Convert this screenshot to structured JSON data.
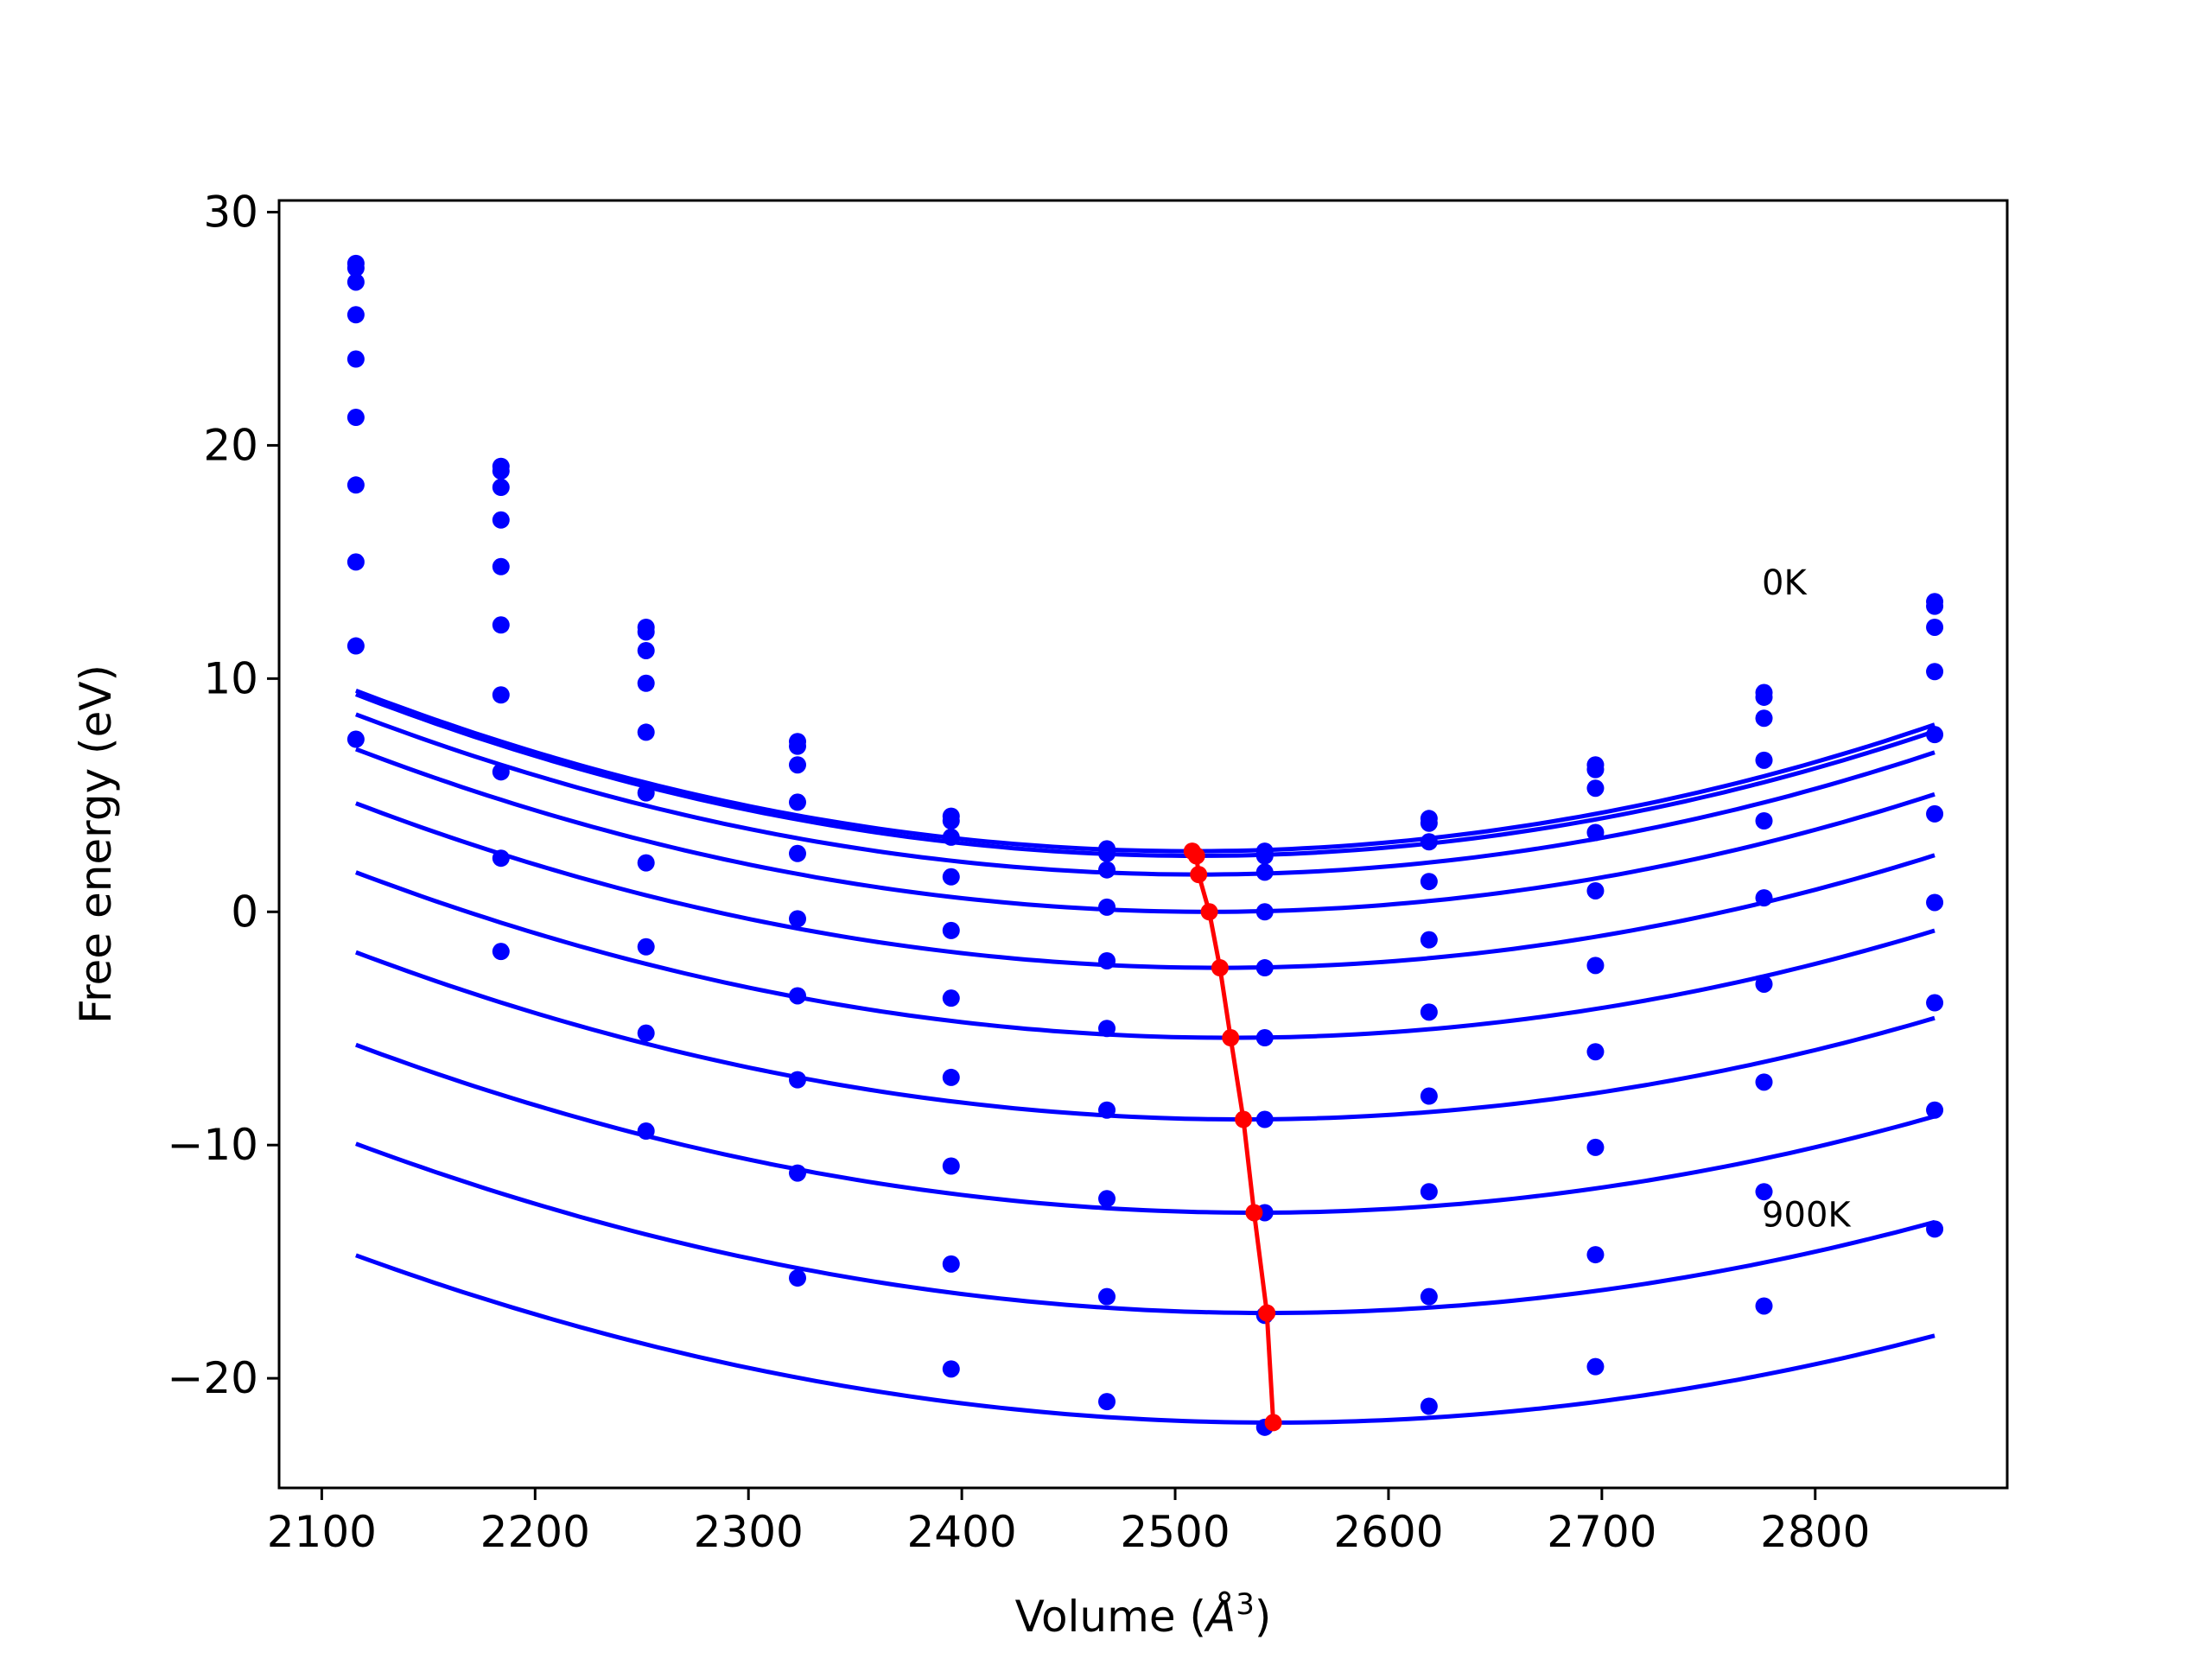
{
  "chart_data": {
    "type": "line",
    "title": "",
    "xlabel": "Volume (",
    "xlabel_symbol": "Å",
    "xlabel_exponent": "3",
    "xlabel_close": ")",
    "ylabel": "Free energy (eV)",
    "xlim": [
      2080,
      2890
    ],
    "ylim": [
      -24.7,
      30.5
    ],
    "xticks": [
      2100,
      2200,
      2300,
      2400,
      2500,
      2600,
      2700,
      2800
    ],
    "xtick_labels": [
      "2100",
      "2200",
      "2300",
      "2400",
      "2500",
      "2600",
      "2700",
      "2800"
    ],
    "yticks": [
      -20,
      -10,
      0,
      10,
      20,
      30
    ],
    "ytick_labels": [
      "−20",
      "−10",
      "0",
      "10",
      "20",
      "30"
    ],
    "grid": false,
    "colors": {
      "series": "#0000ff",
      "minima": "#ff0000",
      "axes": "#000000"
    },
    "annotations": [
      {
        "text": "0K",
        "x": 2775,
        "y": 13.6
      },
      {
        "text": "900K",
        "x": 2775,
        "y": -13.5
      }
    ],
    "x": [
      2116,
      2184,
      2252,
      2323,
      2395,
      2468,
      2542,
      2619,
      2697,
      2776,
      2856
    ],
    "series": [
      {
        "fit": [
          4.48e-05,
          2508,
          2.6
        ],
        "values": [
          27.8,
          19.1,
          12.2,
          7.3,
          4.1,
          2.7,
          2.6,
          4.0,
          6.3,
          9.4,
          13.3
        ]
      },
      {
        "fit": [
          4.46e-05,
          2510,
          2.4
        ],
        "values": [
          27.6,
          18.9,
          12.0,
          7.1,
          3.9,
          2.5,
          2.4,
          3.8,
          6.1,
          9.2,
          13.1
        ]
      },
      {
        "fit": [
          4.4e-05,
          2511,
          1.6
        ],
        "values": [
          27.0,
          18.2,
          11.2,
          6.3,
          3.2,
          1.8,
          1.7,
          3.0,
          5.3,
          8.3,
          12.2
        ]
      },
      {
        "fit": [
          4.36e-05,
          2516,
          0.0
        ],
        "values": [
          25.6,
          16.8,
          9.8,
          4.7,
          1.5,
          0.2,
          0.0,
          1.3,
          3.4,
          6.5,
          10.3
        ]
      },
      {
        "fit": [
          4.3e-05,
          2521,
          -2.4
        ],
        "values": [
          23.7,
          14.8,
          7.7,
          2.5,
          -0.8,
          -2.1,
          -2.4,
          -1.2,
          0.9,
          3.9,
          7.6
        ]
      },
      {
        "fit": [
          4.22e-05,
          2526,
          -5.4
        ],
        "values": [
          21.2,
          12.3,
          5.1,
          -0.3,
          -3.7,
          -5.0,
          -5.4,
          -4.3,
          -2.3,
          0.6,
          4.2
        ]
      },
      {
        "fit": [
          4.14e-05,
          2532,
          -8.9
        ],
        "values": [
          18.3,
          9.3,
          2.1,
          -3.6,
          -7.1,
          -8.5,
          -8.9,
          -7.9,
          -6.0,
          -3.1,
          0.4
        ]
      },
      {
        "fit": [
          4.06e-05,
          2537,
          -12.9
        ],
        "values": [
          15.0,
          6.0,
          -1.5,
          -7.2,
          -10.9,
          -12.3,
          -12.9,
          -12.0,
          -10.1,
          -7.3,
          -3.9
        ]
      },
      {
        "fit": [
          3.98e-05,
          2543,
          -17.2
        ],
        "values": [
          11.4,
          2.3,
          -5.2,
          -11.2,
          -15.1,
          -16.5,
          -17.3,
          -16.5,
          -14.7,
          -12.0,
          -8.5
        ]
      },
      {
        "fit": [
          3.88e-05,
          2546,
          -21.9
        ],
        "values": [
          7.4,
          -1.7,
          -9.4,
          -15.7,
          -19.6,
          -21.0,
          -22.1,
          -21.2,
          -19.5,
          -16.9,
          -13.6
        ]
      }
    ],
    "minima": {
      "x": [
        2508,
        2510,
        2511,
        2516,
        2521,
        2526,
        2532,
        2537,
        2543,
        2546
      ],
      "y": [
        2.6,
        2.4,
        1.6,
        0.0,
        -2.4,
        -5.4,
        -8.9,
        -12.9,
        -17.2,
        -21.9
      ]
    }
  }
}
